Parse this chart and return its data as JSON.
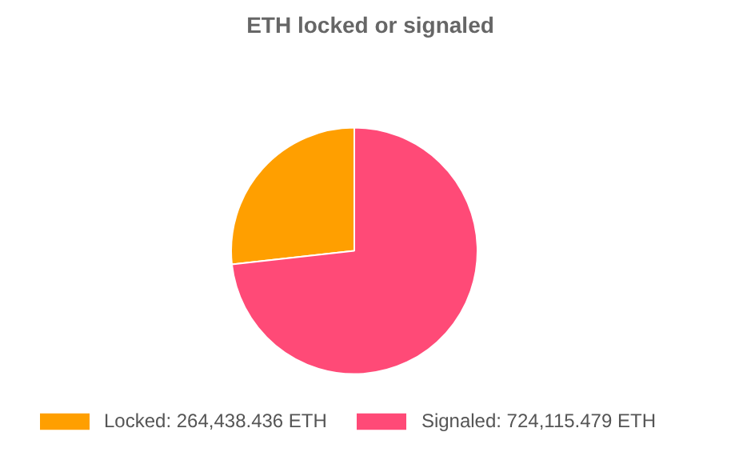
{
  "chart_data": {
    "type": "pie",
    "title": "ETH locked or signaled",
    "categories": [
      "Locked: 264,438.436 ETH",
      "Signaled: 724,115.479 ETH"
    ],
    "values": [
      264438.436,
      724115.479
    ],
    "colors": [
      "#ff9f00",
      "#ff4a77"
    ],
    "legend": "bottom"
  }
}
